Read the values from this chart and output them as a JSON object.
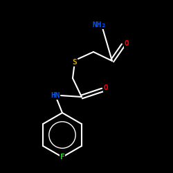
{
  "background_color": "#000000",
  "bond_color": "#ffffff",
  "atom_colors": {
    "N": "#0055ff",
    "O": "#ff0000",
    "S": "#ccaa00",
    "F": "#33cc33",
    "HN": "#0055ff",
    "NH2": "#0055ff"
  },
  "figsize": [
    2.5,
    2.5
  ],
  "dpi": 100
}
